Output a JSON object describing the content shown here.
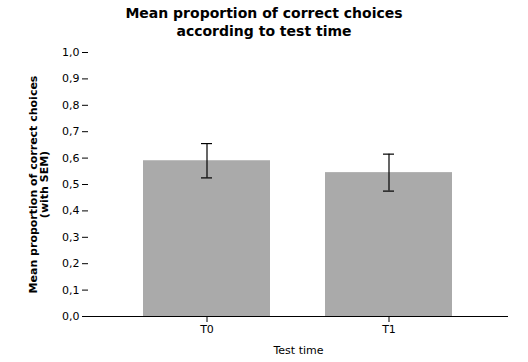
{
  "chart_data": {
    "type": "bar",
    "title": "Mean proportion of correct choices\naccording to test time",
    "xlabel": "Test time",
    "ylabel": "Mean proportion of correct choices\n(with SEM)",
    "categories": [
      "T0",
      "T1"
    ],
    "values": [
      0.59,
      0.545
    ],
    "errors": [
      0.065,
      0.07
    ],
    "color": "#aaaaaa",
    "ylim": [
      0,
      1.0
    ],
    "yticks": [
      {
        "value": 0.0,
        "label": "0,0"
      },
      {
        "value": 0.1,
        "label": "0,1"
      },
      {
        "value": 0.2,
        "label": "0,2"
      },
      {
        "value": 0.3,
        "label": "0,3"
      },
      {
        "value": 0.4,
        "label": "0,4"
      },
      {
        "value": 0.5,
        "label": "0,5"
      },
      {
        "value": 0.6,
        "label": "0,6"
      },
      {
        "value": 0.7,
        "label": "0,7"
      },
      {
        "value": 0.8,
        "label": "0,8"
      },
      {
        "value": 0.9,
        "label": "0,9"
      },
      {
        "value": 1.0,
        "label": "1,0"
      }
    ],
    "grid": false
  }
}
